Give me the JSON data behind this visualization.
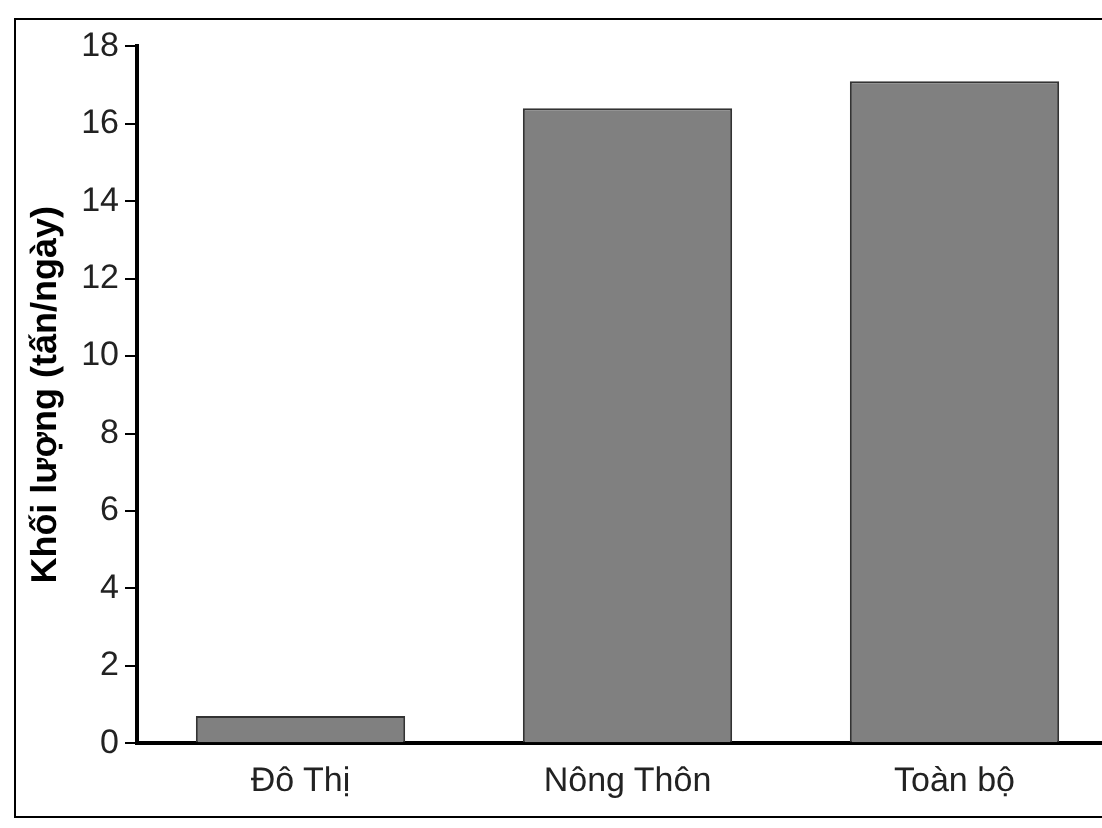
{
  "chart_data": {
    "type": "bar",
    "ylabel": "Khối lượng (tấn/ngày)",
    "categories": [
      "Đô Thị",
      "Nông Thôn",
      "Toàn bộ"
    ],
    "values": [
      0.7,
      16.4,
      17.1
    ],
    "color": "#808080",
    "ylim": [
      0,
      18
    ],
    "yticks": [
      0,
      2,
      4,
      6,
      8,
      10,
      12,
      14,
      16,
      18
    ],
    "grid": false,
    "legend": false
  }
}
